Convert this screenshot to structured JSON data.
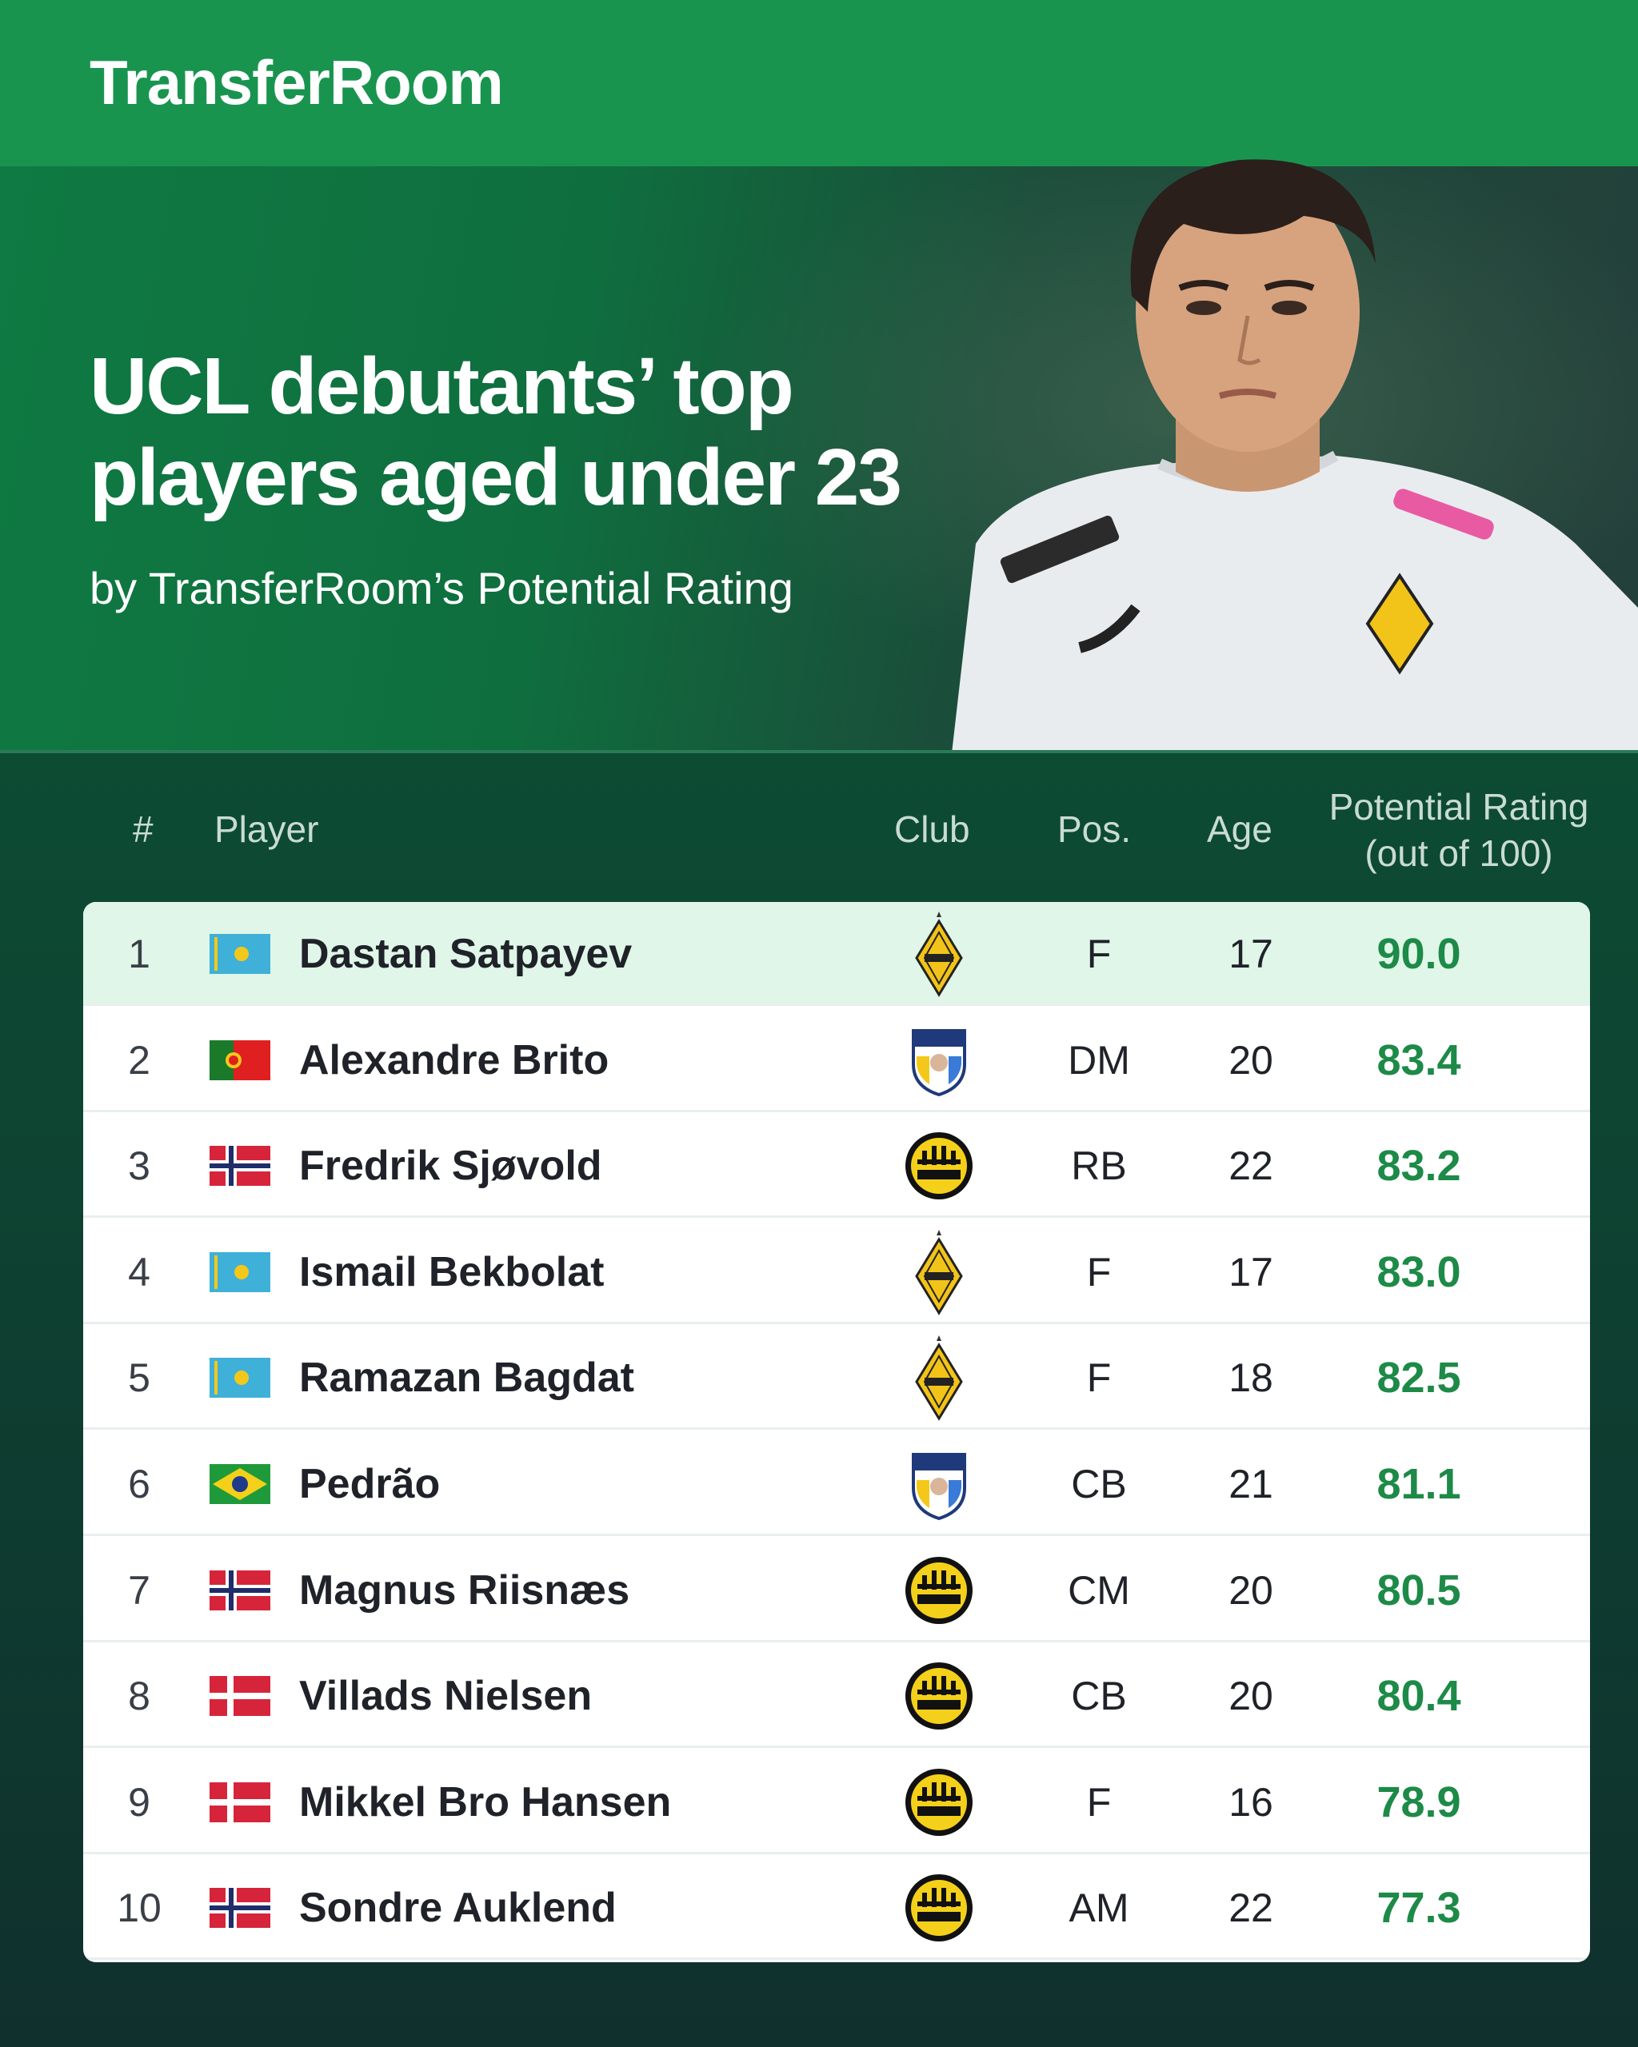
{
  "brand": "TransferRoom",
  "title_lines": [
    "UCL debutants’ top",
    "players aged under 23"
  ],
  "subtitle": "by TransferRoom’s Potential Rating",
  "columns": {
    "rank": "#",
    "player": "Player",
    "club": "Club",
    "pos": "Pos.",
    "age": "Age",
    "rating_line1": "Potential Rating",
    "rating_line2": "(out of 100)"
  },
  "colors": {
    "brand_green": "#19944f",
    "rating_green": "#1d8a48",
    "highlight_row": "#dff6e8"
  },
  "rows": [
    {
      "rank": "1",
      "flag": "kazakhstan",
      "name": "Dastan Satpayev",
      "club": "kairat-crest",
      "pos": "F",
      "age": "17",
      "rating": "90.0"
    },
    {
      "rank": "2",
      "flag": "portugal",
      "name": "Alexandre Brito",
      "club": "pafos-crest",
      "pos": "DM",
      "age": "20",
      "rating": "83.4"
    },
    {
      "rank": "3",
      "flag": "norway",
      "name": "Fredrik Sjøvold",
      "club": "bodo-glimt-crest",
      "pos": "RB",
      "age": "22",
      "rating": "83.2"
    },
    {
      "rank": "4",
      "flag": "kazakhstan",
      "name": "Ismail Bekbolat",
      "club": "kairat-crest",
      "pos": "F",
      "age": "17",
      "rating": "83.0"
    },
    {
      "rank": "5",
      "flag": "kazakhstan",
      "name": "Ramazan Bagdat",
      "club": "kairat-crest",
      "pos": "F",
      "age": "18",
      "rating": "82.5"
    },
    {
      "rank": "6",
      "flag": "brazil",
      "name": "Pedrão",
      "club": "pafos-crest",
      "pos": "CB",
      "age": "21",
      "rating": "81.1"
    },
    {
      "rank": "7",
      "flag": "norway",
      "name": "Magnus Riisnæs",
      "club": "bodo-glimt-crest",
      "pos": "CM",
      "age": "20",
      "rating": "80.5"
    },
    {
      "rank": "8",
      "flag": "denmark",
      "name": "Villads Nielsen",
      "club": "bodo-glimt-crest",
      "pos": "CB",
      "age": "20",
      "rating": "80.4"
    },
    {
      "rank": "9",
      "flag": "denmark",
      "name": "Mikkel Bro Hansen",
      "club": "bodo-glimt-crest",
      "pos": "F",
      "age": "16",
      "rating": "78.9"
    },
    {
      "rank": "10",
      "flag": "norway",
      "name": "Sondre Auklend",
      "club": "bodo-glimt-crest",
      "pos": "AM",
      "age": "22",
      "rating": "77.3"
    }
  ]
}
